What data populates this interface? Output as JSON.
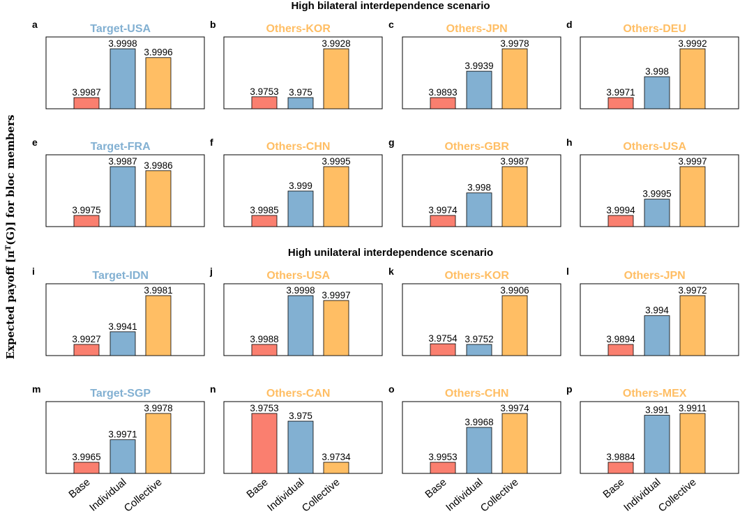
{
  "figure": {
    "ylabel": "Expected payoff [π^T(G)] for bloc members"
  },
  "colors": {
    "base": "#FA7F6F",
    "individual": "#82B0D2",
    "collective": "#FFBE64",
    "target_title": "#82B0D2",
    "others_title": "#FFBE64"
  },
  "chart_data": {
    "type": "bar",
    "categories": [
      "Base",
      "Individual",
      "Collective"
    ],
    "sections": [
      {
        "title": "High bilateral interdependence scenario",
        "panels": [
          {
            "letter": "a",
            "title": "Target-USA",
            "kind": "target",
            "values": [
              3.9987,
              3.9998,
              3.9996
            ],
            "labels": [
              "3.9987",
              "3.9998",
              "3.9996"
            ]
          },
          {
            "letter": "b",
            "title": "Others-KOR",
            "kind": "others",
            "values": [
              3.9753,
              3.975,
              3.9928
            ],
            "labels": [
              "3.9753",
              "3.975",
              "3.9928"
            ]
          },
          {
            "letter": "c",
            "title": "Others-JPN",
            "kind": "others",
            "values": [
              3.9893,
              3.9939,
              3.9978
            ],
            "labels": [
              "3.9893",
              "3.9939",
              "3.9978"
            ]
          },
          {
            "letter": "d",
            "title": "Others-DEU",
            "kind": "others",
            "values": [
              3.9971,
              3.998,
              3.9992
            ],
            "labels": [
              "3.9971",
              "3.998",
              "3.9992"
            ]
          },
          {
            "letter": "e",
            "title": "Target-FRA",
            "kind": "target",
            "values": [
              3.9975,
              3.9987,
              3.9986
            ],
            "labels": [
              "3.9975",
              "3.9987",
              "3.9986"
            ]
          },
          {
            "letter": "f",
            "title": "Others-CHN",
            "kind": "others",
            "values": [
              3.9985,
              3.999,
              3.9995
            ],
            "labels": [
              "3.9985",
              "3.999",
              "3.9995"
            ]
          },
          {
            "letter": "g",
            "title": "Others-GBR",
            "kind": "others",
            "values": [
              3.9974,
              3.998,
              3.9987
            ],
            "labels": [
              "3.9974",
              "3.998",
              "3.9987"
            ]
          },
          {
            "letter": "h",
            "title": "Others-USA",
            "kind": "others",
            "values": [
              3.9994,
              3.9995,
              3.9997
            ],
            "labels": [
              "3.9994",
              "3.9995",
              "3.9997"
            ]
          }
        ]
      },
      {
        "title": "High unilateral interdependence scenario",
        "panels": [
          {
            "letter": "i",
            "title": "Target-IDN",
            "kind": "target",
            "values": [
              3.9927,
              3.9941,
              3.9981
            ],
            "labels": [
              "3.9927",
              "3.9941",
              "3.9981"
            ]
          },
          {
            "letter": "j",
            "title": "Others-USA",
            "kind": "others",
            "values": [
              3.9988,
              3.9998,
              3.9997
            ],
            "labels": [
              "3.9988",
              "3.9998",
              "3.9997"
            ]
          },
          {
            "letter": "k",
            "title": "Others-KOR",
            "kind": "others",
            "values": [
              3.9754,
              3.9752,
              3.9906
            ],
            "labels": [
              "3.9754",
              "3.9752",
              "3.9906"
            ]
          },
          {
            "letter": "l",
            "title": "Others-JPN",
            "kind": "others",
            "values": [
              3.9894,
              3.994,
              3.9972
            ],
            "labels": [
              "3.9894",
              "3.994",
              "3.9972"
            ]
          },
          {
            "letter": "m",
            "title": "Target-SGP",
            "kind": "target",
            "values": [
              3.9965,
              3.9971,
              3.9978
            ],
            "labels": [
              "3.9965",
              "3.9971",
              "3.9978"
            ]
          },
          {
            "letter": "n",
            "title": "Others-CAN",
            "kind": "others",
            "values": [
              3.9753,
              3.975,
              3.9734
            ],
            "labels": [
              "3.9753",
              "3.975",
              "3.9734"
            ]
          },
          {
            "letter": "o",
            "title": "Others-CHN",
            "kind": "others",
            "values": [
              3.9953,
              3.9968,
              3.9974
            ],
            "labels": [
              "3.9953",
              "3.9968",
              "3.9974"
            ]
          },
          {
            "letter": "p",
            "title": "Others-MEX",
            "kind": "others",
            "values": [
              3.9884,
              3.991,
              3.9911
            ],
            "labels": [
              "3.9884",
              "3.991",
              "3.9911"
            ]
          }
        ]
      }
    ]
  }
}
